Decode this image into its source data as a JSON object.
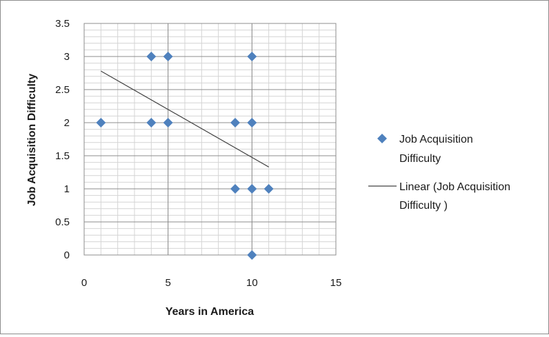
{
  "chart_data": {
    "type": "scatter",
    "xlabel": "Years in America",
    "ylabel": "Job Acquisition Difficulty",
    "xlim": [
      0,
      15
    ],
    "ylim": [
      0,
      3.5
    ],
    "x_ticks": [
      "0",
      "5",
      "10",
      "15"
    ],
    "y_ticks": [
      "0",
      "0.5",
      "1",
      "1.5",
      "2",
      "2.5",
      "3",
      "3.5"
    ],
    "x_tick_values": [
      0,
      5,
      10,
      15
    ],
    "y_tick_values": [
      0,
      0.5,
      1,
      1.5,
      2,
      2.5,
      3,
      3.5
    ],
    "grid": "on",
    "legend_position": "right",
    "series": [
      {
        "name": "Job Acquisition Difficulty",
        "marker": "diamond",
        "color": "#4f81bd",
        "points": [
          {
            "x": 1,
            "y": 2
          },
          {
            "x": 4,
            "y": 3
          },
          {
            "x": 5,
            "y": 3
          },
          {
            "x": 10,
            "y": 3
          },
          {
            "x": 4,
            "y": 2
          },
          {
            "x": 5,
            "y": 2
          },
          {
            "x": 9,
            "y": 2
          },
          {
            "x": 10,
            "y": 2
          },
          {
            "x": 9,
            "y": 1
          },
          {
            "x": 10,
            "y": 1
          },
          {
            "x": 11,
            "y": 1
          },
          {
            "x": 10,
            "y": 0
          }
        ]
      }
    ],
    "trendline": {
      "type": "linear",
      "color": "#404040",
      "x_start": 1,
      "y_start": 2.78,
      "x_end": 11,
      "y_end": 1.33
    },
    "legend": [
      {
        "label_line1": "Job Acquisition",
        "label_line2": "Difficulty",
        "symbol": "diamond"
      },
      {
        "label_line1": "Linear (Job Acquisition",
        "label_line2": "Difficulty )",
        "symbol": "line"
      }
    ]
  }
}
